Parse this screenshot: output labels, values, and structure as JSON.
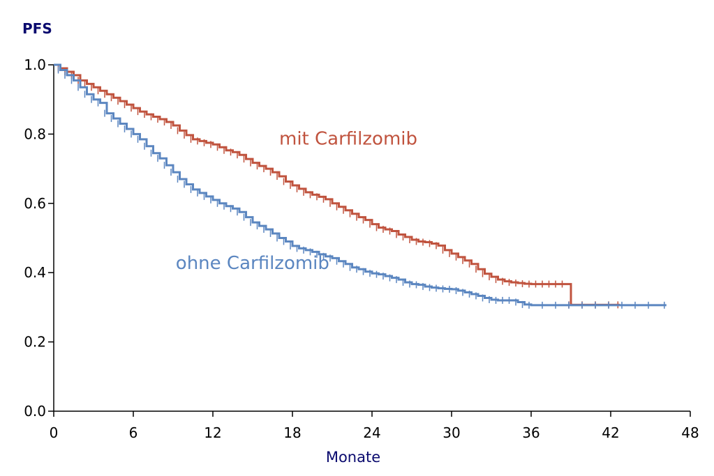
{
  "chart_data": {
    "type": "line",
    "step": true,
    "title": "",
    "ylabel": "PFS",
    "xlabel": "Monate",
    "xlim": [
      0,
      48
    ],
    "ylim": [
      0,
      1
    ],
    "x_ticks": [
      "0",
      "6",
      "12",
      "18",
      "24",
      "30",
      "36",
      "42",
      "48"
    ],
    "y_ticks": [
      "0.0",
      "0.2",
      "0.4",
      "0.6",
      "0.8",
      "1.0"
    ],
    "grid": false,
    "colors": {
      "axis_title": "#0a0a6e",
      "axis": "#000000"
    },
    "series": [
      {
        "name": "mit Carfilzomib",
        "color": "#c0533e",
        "x": [
          0,
          0.5,
          1,
          1.5,
          2,
          2.5,
          3,
          3.5,
          4,
          4.5,
          5,
          5.5,
          6,
          6.5,
          7,
          7.5,
          8,
          8.5,
          9,
          9.5,
          10,
          10.5,
          11,
          11.5,
          12,
          12.5,
          13,
          13.5,
          14,
          14.5,
          15,
          15.5,
          16,
          16.5,
          17,
          17.5,
          18,
          18.5,
          19,
          19.5,
          20,
          20.5,
          21,
          21.5,
          22,
          22.5,
          23,
          23.5,
          24,
          24.5,
          25,
          25.5,
          26,
          26.5,
          27,
          27.5,
          28,
          28.5,
          29,
          29.5,
          30,
          30.5,
          31,
          31.5,
          32,
          32.5,
          33,
          33.5,
          34,
          34.5,
          35,
          35.5,
          36,
          36.5,
          37,
          37.5,
          38,
          38.5,
          39,
          40,
          41,
          42,
          42.7
        ],
        "y": [
          1.0,
          0.99,
          0.98,
          0.97,
          0.955,
          0.945,
          0.935,
          0.925,
          0.915,
          0.905,
          0.895,
          0.885,
          0.875,
          0.865,
          0.857,
          0.85,
          0.843,
          0.835,
          0.825,
          0.81,
          0.797,
          0.785,
          0.78,
          0.775,
          0.77,
          0.762,
          0.753,
          0.748,
          0.74,
          0.728,
          0.717,
          0.708,
          0.7,
          0.69,
          0.678,
          0.663,
          0.652,
          0.642,
          0.632,
          0.625,
          0.619,
          0.612,
          0.6,
          0.59,
          0.58,
          0.57,
          0.56,
          0.552,
          0.54,
          0.53,
          0.525,
          0.52,
          0.51,
          0.503,
          0.495,
          0.49,
          0.488,
          0.484,
          0.478,
          0.465,
          0.455,
          0.445,
          0.435,
          0.425,
          0.41,
          0.397,
          0.388,
          0.38,
          0.375,
          0.372,
          0.37,
          0.368,
          0.367,
          0.367,
          0.367,
          0.367,
          0.367,
          0.367,
          0.307,
          0.307,
          0.307,
          0.307,
          0.307
        ]
      },
      {
        "name": "ohne Carfilzomib",
        "color": "#5b86c0",
        "x": [
          0,
          0.5,
          1,
          1.5,
          2,
          2.5,
          3,
          3.5,
          4,
          4.5,
          5,
          5.5,
          6,
          6.5,
          7,
          7.5,
          8,
          8.5,
          9,
          9.5,
          10,
          10.5,
          11,
          11.5,
          12,
          12.5,
          13,
          13.5,
          14,
          14.5,
          15,
          15.5,
          16,
          16.5,
          17,
          17.5,
          18,
          18.5,
          19,
          19.5,
          20,
          20.5,
          21,
          21.5,
          22,
          22.5,
          23,
          23.5,
          24,
          24.5,
          25,
          25.5,
          26,
          26.5,
          27,
          27.5,
          28,
          28.5,
          29,
          29.5,
          30,
          30.5,
          31,
          31.5,
          32,
          32.5,
          33,
          33.5,
          34,
          34.5,
          35,
          35.5,
          36,
          37,
          38,
          39,
          40,
          41,
          42,
          43,
          44,
          45,
          46.2
        ],
        "y": [
          1.0,
          0.985,
          0.97,
          0.955,
          0.935,
          0.915,
          0.9,
          0.89,
          0.86,
          0.845,
          0.83,
          0.815,
          0.8,
          0.785,
          0.765,
          0.745,
          0.73,
          0.71,
          0.69,
          0.67,
          0.655,
          0.64,
          0.63,
          0.62,
          0.61,
          0.6,
          0.592,
          0.585,
          0.575,
          0.56,
          0.545,
          0.535,
          0.525,
          0.513,
          0.5,
          0.49,
          0.477,
          0.47,
          0.465,
          0.46,
          0.453,
          0.447,
          0.442,
          0.433,
          0.425,
          0.415,
          0.41,
          0.403,
          0.398,
          0.395,
          0.39,
          0.385,
          0.38,
          0.372,
          0.367,
          0.365,
          0.36,
          0.357,
          0.355,
          0.353,
          0.352,
          0.348,
          0.343,
          0.338,
          0.333,
          0.327,
          0.322,
          0.32,
          0.32,
          0.32,
          0.315,
          0.308,
          0.306,
          0.306,
          0.306,
          0.306,
          0.306,
          0.306,
          0.306,
          0.306,
          0.306,
          0.306,
          0.306
        ]
      }
    ],
    "annotations": [
      {
        "text": "mit Carfilzomib",
        "x": 17,
        "y": 0.77,
        "series": 0
      },
      {
        "text": "ohne Carfilzomib",
        "x": 9.2,
        "y": 0.41,
        "series": 1
      }
    ]
  }
}
